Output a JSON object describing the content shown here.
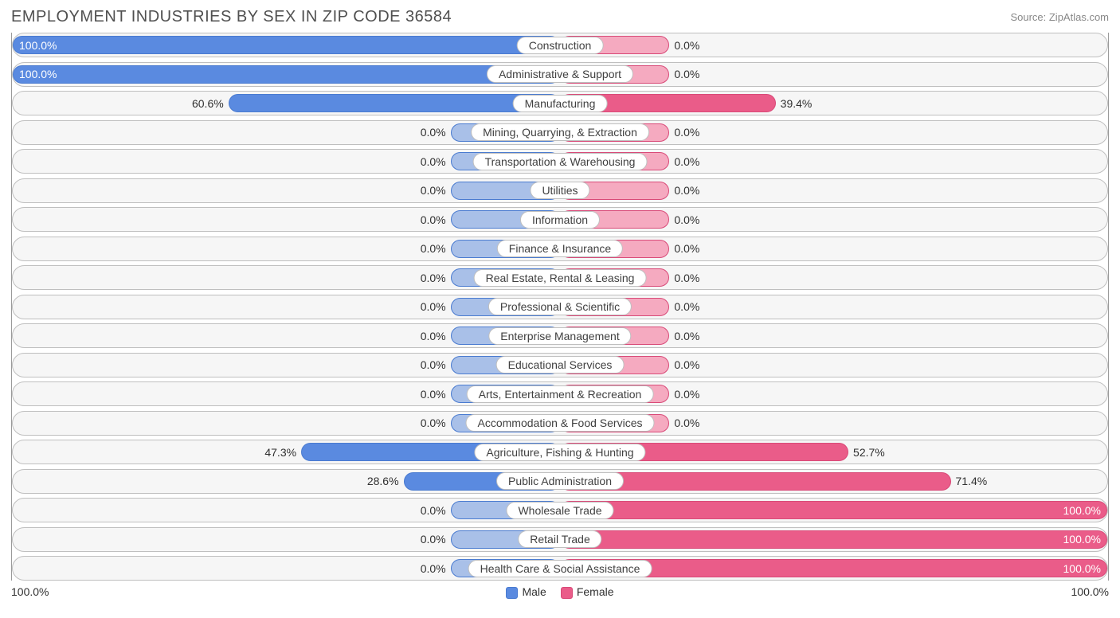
{
  "title": "EMPLOYMENT INDUSTRIES BY SEX IN ZIP CODE 36584",
  "source": "Source: ZipAtlas.com",
  "axis_left": "100.0%",
  "axis_right": "100.0%",
  "legend": {
    "male": "Male",
    "female": "Female"
  },
  "colors": {
    "male_fill_full": "#5a8ae0",
    "male_fill_zero": "#a9c0e8",
    "male_border": "#4a7bd0",
    "female_fill_full": "#ea5c89",
    "female_fill_zero": "#f5aac0",
    "female_border": "#d94a78",
    "row_bg": "#f6f6f6",
    "row_border": "#bfbfbf",
    "label_bg": "#ffffff",
    "text": "#303030",
    "title_text": "#505050",
    "axis_line": "#9a9a9a"
  },
  "chart": {
    "type": "diverging-bar",
    "zero_bar_pct": 20,
    "rows": [
      {
        "label": "Construction",
        "male_val": 100.0,
        "male_txt": "100.0%",
        "female_val": 0.0,
        "female_txt": "0.0%"
      },
      {
        "label": "Administrative & Support",
        "male_val": 100.0,
        "male_txt": "100.0%",
        "female_val": 0.0,
        "female_txt": "0.0%"
      },
      {
        "label": "Manufacturing",
        "male_val": 60.6,
        "male_txt": "60.6%",
        "female_val": 39.4,
        "female_txt": "39.4%"
      },
      {
        "label": "Mining, Quarrying, & Extraction",
        "male_val": 0.0,
        "male_txt": "0.0%",
        "female_val": 0.0,
        "female_txt": "0.0%"
      },
      {
        "label": "Transportation & Warehousing",
        "male_val": 0.0,
        "male_txt": "0.0%",
        "female_val": 0.0,
        "female_txt": "0.0%"
      },
      {
        "label": "Utilities",
        "male_val": 0.0,
        "male_txt": "0.0%",
        "female_val": 0.0,
        "female_txt": "0.0%"
      },
      {
        "label": "Information",
        "male_val": 0.0,
        "male_txt": "0.0%",
        "female_val": 0.0,
        "female_txt": "0.0%"
      },
      {
        "label": "Finance & Insurance",
        "male_val": 0.0,
        "male_txt": "0.0%",
        "female_val": 0.0,
        "female_txt": "0.0%"
      },
      {
        "label": "Real Estate, Rental & Leasing",
        "male_val": 0.0,
        "male_txt": "0.0%",
        "female_val": 0.0,
        "female_txt": "0.0%"
      },
      {
        "label": "Professional & Scientific",
        "male_val": 0.0,
        "male_txt": "0.0%",
        "female_val": 0.0,
        "female_txt": "0.0%"
      },
      {
        "label": "Enterprise Management",
        "male_val": 0.0,
        "male_txt": "0.0%",
        "female_val": 0.0,
        "female_txt": "0.0%"
      },
      {
        "label": "Educational Services",
        "male_val": 0.0,
        "male_txt": "0.0%",
        "female_val": 0.0,
        "female_txt": "0.0%"
      },
      {
        "label": "Arts, Entertainment & Recreation",
        "male_val": 0.0,
        "male_txt": "0.0%",
        "female_val": 0.0,
        "female_txt": "0.0%"
      },
      {
        "label": "Accommodation & Food Services",
        "male_val": 0.0,
        "male_txt": "0.0%",
        "female_val": 0.0,
        "female_txt": "0.0%"
      },
      {
        "label": "Agriculture, Fishing & Hunting",
        "male_val": 47.3,
        "male_txt": "47.3%",
        "female_val": 52.7,
        "female_txt": "52.7%"
      },
      {
        "label": "Public Administration",
        "male_val": 28.6,
        "male_txt": "28.6%",
        "female_val": 71.4,
        "female_txt": "71.4%"
      },
      {
        "label": "Wholesale Trade",
        "male_val": 0.0,
        "male_txt": "0.0%",
        "female_val": 100.0,
        "female_txt": "100.0%"
      },
      {
        "label": "Retail Trade",
        "male_val": 0.0,
        "male_txt": "0.0%",
        "female_val": 100.0,
        "female_txt": "100.0%"
      },
      {
        "label": "Health Care & Social Assistance",
        "male_val": 0.0,
        "male_txt": "0.0%",
        "female_val": 100.0,
        "female_txt": "100.0%"
      }
    ]
  }
}
